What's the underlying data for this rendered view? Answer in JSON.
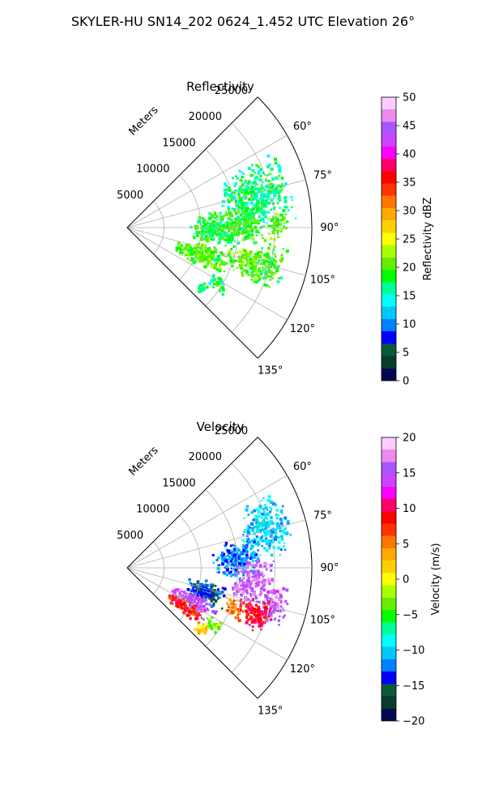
{
  "figure": {
    "suptitle": "SKYLER-HU  SN14_202  0624_1.452 UTC Elevation 26°"
  },
  "chart_data": [
    {
      "type": "heatmap",
      "subtype": "polar-sector (PPI radar scan)",
      "title": "Reflectivity",
      "radial_label": "Meters",
      "r_ticks": [
        5000,
        10000,
        15000,
        20000,
        25000
      ],
      "r_lim": [
        0,
        25000
      ],
      "theta_ticks_deg": [
        60,
        75,
        90,
        105,
        120,
        135
      ],
      "theta_tick_labels": [
        "60°",
        "75°",
        "90°",
        "105°",
        "120°",
        "135°"
      ],
      "theta_range_deg": [
        45,
        135
      ],
      "grid": true,
      "colorbar": {
        "label": "Reflectivity dBZ",
        "range": [
          0,
          50
        ],
        "ticks": [
          0,
          5,
          10,
          15,
          20,
          25,
          30,
          35,
          40,
          45,
          50
        ],
        "tick_labels": [
          "0",
          "5",
          "10",
          "15",
          "20",
          "25",
          "30",
          "35",
          "40",
          "45",
          "50"
        ],
        "stops": [
          "#08084f",
          "#0a3b2e",
          "#0a5a3a",
          "#0000ff",
          "#0080ff",
          "#00c8ff",
          "#00ffff",
          "#00ff99",
          "#00ff00",
          "#66ee00",
          "#aaff00",
          "#ffff00",
          "#ffd000",
          "#ffaa00",
          "#ff7700",
          "#ff3300",
          "#ff0000",
          "#ff0066",
          "#ff00ff",
          "#cc44ff",
          "#aa55ff",
          "#ee88ee",
          "#ffccff"
        ]
      },
      "echo_regions": [
        {
          "r": 18000,
          "theta": 76,
          "dr": 5000,
          "dtheta": 14,
          "value": 17
        },
        {
          "r": 12000,
          "theta": 90,
          "dr": 3500,
          "dtheta": 12,
          "value": 18
        },
        {
          "r": 16000,
          "theta": 89,
          "dr": 3000,
          "dtheta": 9,
          "value": 19
        },
        {
          "r": 20500,
          "theta": 90,
          "dr": 1500,
          "dtheta": 6,
          "value": 20
        },
        {
          "r": 11000,
          "theta": 110,
          "dr": 4000,
          "dtheta": 9,
          "value": 20
        },
        {
          "r": 19500,
          "theta": 105,
          "dr": 2500,
          "dtheta": 10,
          "value": 19
        },
        {
          "r": 16500,
          "theta": 106,
          "dr": 2500,
          "dtheta": 7,
          "value": 21
        },
        {
          "r": 14500,
          "theta": 122,
          "dr": 1500,
          "dtheta": 4,
          "value": 17
        },
        {
          "r": 13000,
          "theta": 129,
          "dr": 900,
          "dtheta": 4,
          "value": 18
        }
      ]
    },
    {
      "type": "heatmap",
      "subtype": "polar-sector (PPI radar scan)",
      "title": "Velocity",
      "radial_label": "Meters",
      "r_ticks": [
        5000,
        10000,
        15000,
        20000,
        25000
      ],
      "r_lim": [
        0,
        25000
      ],
      "theta_ticks_deg": [
        60,
        75,
        90,
        105,
        120,
        135
      ],
      "theta_tick_labels": [
        "60°",
        "75°",
        "90°",
        "105°",
        "120°",
        "135°"
      ],
      "theta_range_deg": [
        45,
        135
      ],
      "grid": true,
      "colorbar": {
        "label": "Velocity (m/s)",
        "range": [
          -20,
          20
        ],
        "ticks": [
          -20,
          -15,
          -10,
          -5,
          0,
          5,
          10,
          15,
          20
        ],
        "tick_labels": [
          "−20",
          "−15",
          "−10",
          "−5",
          "0",
          "5",
          "10",
          "15",
          "20"
        ],
        "stops": [
          "#08084f",
          "#0a3b2e",
          "#0a5a3a",
          "#0000ff",
          "#0080ff",
          "#00c8ff",
          "#00ffff",
          "#00ff99",
          "#00ff00",
          "#66ee00",
          "#aaff00",
          "#ffff00",
          "#ffd000",
          "#ffaa00",
          "#ff7700",
          "#ff3300",
          "#ff0000",
          "#ff0066",
          "#ff00ff",
          "#cc44ff",
          "#aa55ff",
          "#ee88ee",
          "#ffccff"
        ]
      },
      "echo_regions": [
        {
          "r": 19500,
          "theta": 74,
          "dr": 3500,
          "dtheta": 12,
          "value": -10
        },
        {
          "r": 15000,
          "theta": 86,
          "dr": 3500,
          "dtheta": 10,
          "value": -12
        },
        {
          "r": 17000,
          "theta": 96,
          "dr": 3000,
          "dtheta": 12,
          "value": 16
        },
        {
          "r": 11000,
          "theta": 108,
          "dr": 3000,
          "dtheta": 10,
          "value": -14
        },
        {
          "r": 10000,
          "theta": 118,
          "dr": 3500,
          "dtheta": 8,
          "value": 15
        },
        {
          "r": 9500,
          "theta": 124,
          "dr": 3000,
          "dtheta": 5,
          "value": 8
        },
        {
          "r": 20500,
          "theta": 104,
          "dr": 2000,
          "dtheta": 8,
          "value": 15
        },
        {
          "r": 18500,
          "theta": 110,
          "dr": 2500,
          "dtheta": 8,
          "value": 9
        },
        {
          "r": 15500,
          "theta": 111,
          "dr": 1500,
          "dtheta": 5,
          "value": 5
        },
        {
          "r": 14000,
          "theta": 123,
          "dr": 1500,
          "dtheta": 4,
          "value": -3
        },
        {
          "r": 13000,
          "theta": 129,
          "dr": 900,
          "dtheta": 4,
          "value": 2
        }
      ]
    }
  ]
}
